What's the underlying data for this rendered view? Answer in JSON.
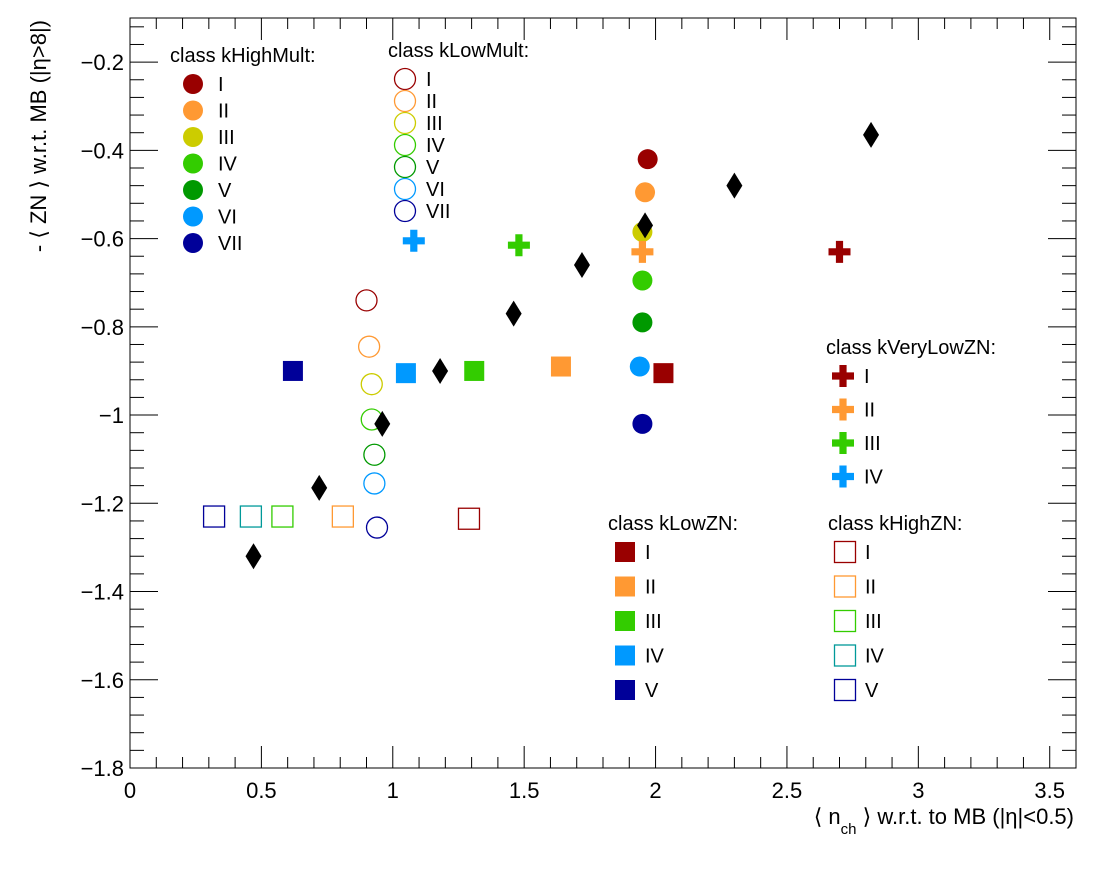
{
  "chart_data": {
    "type": "scatter",
    "xlabel": {
      "pre": "⟨ n",
      "sub": "ch",
      "post": " ⟩ w.r.t. to MB (|η|<0.5)"
    },
    "ylabel": "- ⟨ ZN ⟩ w.r.t. MB (|η>8|)",
    "xlim": [
      0,
      3.6
    ],
    "ylim": [
      -1.8,
      -0.1
    ],
    "xticks": [
      0,
      0.5,
      1,
      1.5,
      2,
      2.5,
      3,
      3.5
    ],
    "xtick_labels": [
      "0",
      "0.5",
      "1",
      "1.5",
      "2",
      "2.5",
      "3",
      "3.5"
    ],
    "yticks": [
      -1.8,
      -1.6,
      -1.4,
      -1.2,
      -1,
      -0.8,
      -0.6,
      -0.4,
      -0.2
    ],
    "ytick_labels": [
      "−1.8",
      "−1.6",
      "−1.4",
      "−1.2",
      "−1",
      "−0.8",
      "−0.6",
      "−0.4",
      "−0.2"
    ],
    "grid": false,
    "legend_groups": [
      {
        "title": "class kHighMult:",
        "marker": "filled-circle",
        "placement": "top-left",
        "series": [
          {
            "name": "I",
            "color": "#990000",
            "points": [
              [
                1.97,
                -0.42
              ]
            ]
          },
          {
            "name": "II",
            "color": "#ff9933",
            "points": [
              [
                1.96,
                -0.495
              ]
            ]
          },
          {
            "name": "III",
            "color": "#cccc00",
            "points": [
              [
                1.95,
                -0.585
              ]
            ]
          },
          {
            "name": "IV",
            "color": "#33cc00",
            "points": [
              [
                1.95,
                -0.695
              ]
            ]
          },
          {
            "name": "V",
            "color": "#009900",
            "points": [
              [
                1.95,
                -0.79
              ]
            ]
          },
          {
            "name": "VI",
            "color": "#0099ff",
            "points": [
              [
                1.94,
                -0.89
              ]
            ]
          },
          {
            "name": "VII",
            "color": "#000099",
            "points": [
              [
                1.95,
                -1.02
              ]
            ]
          }
        ]
      },
      {
        "title": "class kLowMult:",
        "marker": "open-circle",
        "placement": "top-center",
        "series": [
          {
            "name": "I",
            "color": "#990000",
            "points": [
              [
                0.9,
                -0.74
              ]
            ]
          },
          {
            "name": "II",
            "color": "#ff9933",
            "points": [
              [
                0.91,
                -0.845
              ]
            ]
          },
          {
            "name": "III",
            "color": "#cccc00",
            "points": [
              [
                0.92,
                -0.93
              ]
            ]
          },
          {
            "name": "IV",
            "color": "#33cc00",
            "points": [
              [
                0.92,
                -1.01
              ]
            ]
          },
          {
            "name": "V",
            "color": "#009900",
            "points": [
              [
                0.93,
                -1.09
              ]
            ]
          },
          {
            "name": "VI",
            "color": "#0099ff",
            "points": [
              [
                0.93,
                -1.155
              ]
            ]
          },
          {
            "name": "VII",
            "color": "#000099",
            "points": [
              [
                0.94,
                -1.255
              ]
            ]
          }
        ]
      },
      {
        "title": "class kVeryLowZN:",
        "marker": "filled-cross",
        "placement": "right",
        "series": [
          {
            "name": "I",
            "color": "#990000",
            "points": [
              [
                2.7,
                -0.63
              ]
            ]
          },
          {
            "name": "II",
            "color": "#ff9933",
            "points": [
              [
                1.95,
                -0.63
              ]
            ]
          },
          {
            "name": "III",
            "color": "#33cc00",
            "points": [
              [
                1.48,
                -0.615
              ]
            ]
          },
          {
            "name": "IV",
            "color": "#0099ff",
            "points": [
              [
                1.08,
                -0.605
              ]
            ]
          }
        ]
      },
      {
        "title": "class kLowZN:",
        "marker": "filled-square",
        "placement": "bottom-center",
        "series": [
          {
            "name": "I",
            "color": "#990000",
            "points": [
              [
                2.03,
                -0.905
              ]
            ]
          },
          {
            "name": "II",
            "color": "#ff9933",
            "points": [
              [
                1.64,
                -0.89
              ]
            ]
          },
          {
            "name": "III",
            "color": "#33cc00",
            "points": [
              [
                1.31,
                -0.9
              ]
            ]
          },
          {
            "name": "IV",
            "color": "#0099ff",
            "points": [
              [
                1.05,
                -0.905
              ]
            ]
          },
          {
            "name": "V",
            "color": "#000099",
            "points": [
              [
                0.62,
                -0.9
              ]
            ]
          }
        ]
      },
      {
        "title": "class kHighZN:",
        "marker": "open-square",
        "placement": "bottom-right",
        "series": [
          {
            "name": "I",
            "color": "#990000",
            "points": [
              [
                1.29,
                -1.235
              ]
            ]
          },
          {
            "name": "II",
            "color": "#ff9933",
            "points": [
              [
                0.81,
                -1.23
              ]
            ]
          },
          {
            "name": "III",
            "color": "#33cc00",
            "points": [
              [
                0.58,
                -1.23
              ]
            ]
          },
          {
            "name": "IV",
            "color": "#009999",
            "points": [
              [
                0.46,
                -1.23
              ]
            ]
          },
          {
            "name": "V",
            "color": "#000099",
            "points": [
              [
                0.32,
                -1.23
              ]
            ]
          }
        ]
      }
    ],
    "diamond_series": {
      "color": "#000000",
      "points": [
        [
          0.47,
          -1.32
        ],
        [
          0.72,
          -1.165
        ],
        [
          0.96,
          -1.02
        ],
        [
          1.18,
          -0.9
        ],
        [
          1.46,
          -0.77
        ],
        [
          1.72,
          -0.66
        ],
        [
          1.96,
          -0.57
        ],
        [
          2.3,
          -0.48
        ],
        [
          2.82,
          -0.365
        ]
      ]
    }
  }
}
